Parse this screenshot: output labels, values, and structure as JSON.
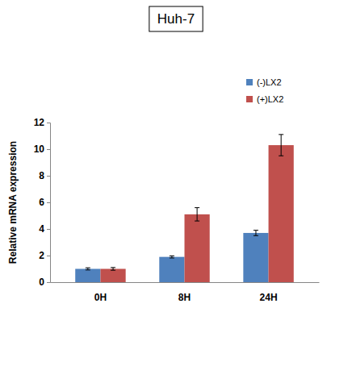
{
  "chart_data": {
    "type": "bar",
    "title": "Huh-7",
    "categories": [
      "0H",
      "8H",
      "24H"
    ],
    "series": [
      {
        "name": "(-)LX2",
        "color": "#4f81bd",
        "values": [
          1.0,
          1.9,
          3.7
        ],
        "errors": [
          0.08,
          0.08,
          0.2
        ]
      },
      {
        "name": "(+)LX2",
        "color": "#c0504d",
        "values": [
          1.0,
          5.1,
          10.3
        ],
        "errors": [
          0.1,
          0.5,
          0.8
        ]
      }
    ],
    "y_label": "Relative mRNA expression",
    "ylim": [
      0,
      12
    ],
    "yticks": [
      0,
      2,
      4,
      6,
      8,
      10,
      12
    ],
    "grid": false,
    "legend": "top-right"
  }
}
